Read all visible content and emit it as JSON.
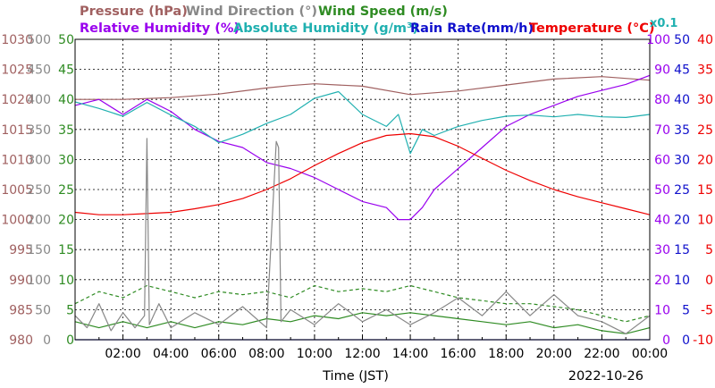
{
  "chart_data": {
    "type": "line",
    "legend": [
      {
        "label": "Pressure (hPa)",
        "color": "#a06060"
      },
      {
        "label": "Wind Direction (°)",
        "color": "#888888"
      },
      {
        "label": "Wind Speed (m/s)",
        "color": "#2e8b22"
      },
      {
        "label": "Relative Humidity (%)",
        "color": "#9900ee"
      },
      {
        "label": "Absolute Humidity (g/m³)",
        "color": "#20b0b0"
      },
      {
        "label": "Rain Rate(mm/h)",
        "color": "#1010cc"
      },
      {
        "label": "Temperature (°C)",
        "color": "#ee0000"
      },
      {
        "label": "x0.1",
        "color": "#20b0b0"
      }
    ],
    "xlabel": "Time (JST)",
    "date": "2022-10-26",
    "x_ticks": [
      "02:00",
      "04:00",
      "06:00",
      "08:00",
      "10:00",
      "12:00",
      "14:00",
      "16:00",
      "18:00",
      "20:00",
      "22:00",
      "00:00"
    ],
    "x_range_hours": [
      0,
      24
    ],
    "grid": true,
    "axes": [
      {
        "name": "Pressure",
        "unit": "hPa",
        "side": "left",
        "color": "#a06060",
        "range": [
          980,
          1030
        ],
        "ticks": [
          "1030",
          "1025",
          "1020",
          "1015",
          "1010",
          "1005",
          "1000",
          "995",
          "990",
          "985",
          "980"
        ]
      },
      {
        "name": "Wind Direction",
        "unit": "°",
        "side": "left",
        "color": "#888888",
        "range": [
          0,
          500
        ],
        "ticks": [
          "500",
          "450",
          "400",
          "350",
          "300",
          "250",
          "200",
          "150",
          "100",
          "50",
          "0"
        ]
      },
      {
        "name": "Wind Speed",
        "unit": "m/s",
        "side": "left",
        "color": "#2e8b22",
        "range": [
          0,
          50
        ],
        "ticks": [
          "50",
          "45",
          "40",
          "35",
          "30",
          "25",
          "20",
          "15",
          "10",
          "5",
          "0"
        ]
      },
      {
        "name": "Relative Humidity",
        "unit": "%",
        "side": "right",
        "color": "#9900ee",
        "range": [
          0,
          100
        ],
        "ticks": [
          "100",
          "90",
          "80",
          "70",
          "60",
          "50",
          "40",
          "30",
          "20",
          "10",
          "0"
        ]
      },
      {
        "name": "Rain Rate",
        "unit": "mm/h",
        "side": "right",
        "color": "#1010cc",
        "range": [
          0,
          50
        ],
        "ticks": [
          "50",
          "45",
          "40",
          "35",
          "30",
          "25",
          "20",
          "15",
          "10",
          "5",
          "0"
        ]
      },
      {
        "name": "Temperature",
        "unit": "°C",
        "side": "right",
        "color": "#ee0000",
        "range": [
          -10,
          40
        ],
        "ticks": [
          "40",
          "35",
          "30",
          "25",
          "20",
          "15",
          "10",
          "5",
          "0",
          "-5",
          "-10"
        ]
      }
    ],
    "series": [
      {
        "name": "Pressure (hPa)",
        "color": "#a06060",
        "axis": "Pressure",
        "x": [
          0,
          2,
          4,
          6,
          8,
          9,
          10,
          12,
          14,
          16,
          18,
          20,
          22,
          24
        ],
        "y": [
          1020,
          1020,
          1020.3,
          1020.9,
          1021.9,
          1022.3,
          1022.6,
          1022.2,
          1020.8,
          1021.4,
          1022.4,
          1023.4,
          1023.8,
          1023.2
        ]
      },
      {
        "name": "Relative Humidity (%)",
        "color": "#9900ee",
        "axis": "Relative Humidity",
        "x": [
          0,
          1,
          2,
          3,
          4,
          5,
          6,
          7,
          8,
          9,
          10,
          11,
          12,
          13,
          13.5,
          14,
          14.5,
          15,
          16,
          17,
          18,
          19,
          20,
          21,
          22,
          23,
          24
        ],
        "y": [
          78,
          80,
          75,
          80,
          76,
          70,
          66,
          64,
          59,
          57,
          54,
          50,
          46,
          44,
          40,
          40,
          44,
          50,
          57,
          64,
          71,
          75,
          78,
          81,
          83,
          85,
          88
        ]
      },
      {
        "name": "Absolute Humidity (g/m³)",
        "color": "#20b0b0",
        "axis": "Wind Speed",
        "scale": "x0.1",
        "x": [
          0,
          1,
          2,
          3,
          4,
          5,
          6,
          7,
          8,
          9,
          10,
          11,
          12,
          13,
          13.5,
          14,
          14.5,
          15,
          16,
          17,
          18,
          19,
          20,
          21,
          22,
          23,
          24
        ],
        "y": [
          39.6,
          38.5,
          37.2,
          39.5,
          37.4,
          35.5,
          32.8,
          34.2,
          36,
          37.5,
          40.2,
          41.3,
          37.5,
          35.5,
          37.5,
          31,
          35,
          34,
          35.5,
          36.5,
          37.2,
          37.4,
          37.1,
          37.5,
          37.1,
          37,
          37.5
        ]
      },
      {
        "name": "Temperature (°C)",
        "color": "#ee0000",
        "axis": "Temperature",
        "x": [
          0,
          1,
          2,
          3,
          4,
          5,
          6,
          7,
          8,
          9,
          10,
          11,
          12,
          13,
          14,
          15,
          16,
          17,
          18,
          19,
          20,
          21,
          22,
          23,
          24
        ],
        "y": [
          11.2,
          10.8,
          10.8,
          11,
          11.2,
          11.8,
          12.5,
          13.5,
          15,
          16.8,
          19,
          21,
          22.8,
          24,
          24.3,
          23.8,
          22.2,
          20.2,
          18.2,
          16.5,
          15,
          13.8,
          12.8,
          11.8,
          10.8
        ]
      },
      {
        "name": "Wind Speed (m/s)",
        "color": "#2e8b22",
        "axis": "Wind Speed",
        "x": [
          0,
          1,
          2,
          3,
          4,
          5,
          6,
          7,
          8,
          9,
          10,
          11,
          12,
          13,
          14,
          15,
          16,
          17,
          18,
          19,
          20,
          21,
          22,
          23,
          24
        ],
        "y": [
          3,
          2,
          3,
          2,
          3,
          2,
          3,
          2.5,
          3.5,
          3,
          4,
          3.5,
          4.5,
          4,
          4.5,
          4,
          3.5,
          3,
          2.5,
          3,
          2,
          2.5,
          1.5,
          1,
          2
        ]
      },
      {
        "name": "Wind Speed gust (m/s)",
        "color": "#2e8b22",
        "axis": "Wind Speed",
        "style": "dashed",
        "x": [
          0,
          1,
          2,
          3,
          4,
          5,
          6,
          7,
          8,
          9,
          10,
          11,
          12,
          13,
          14,
          15,
          16,
          17,
          18,
          19,
          20,
          21,
          22,
          23,
          24
        ],
        "y": [
          6,
          8,
          7,
          9,
          8,
          7,
          8,
          7.5,
          8,
          7,
          9,
          8,
          8.5,
          8,
          9,
          8,
          7,
          6.5,
          6,
          6,
          5.5,
          5,
          4,
          3,
          4
        ]
      },
      {
        "name": "Wind Direction (°)",
        "color": "#888888",
        "axis": "Wind Direction",
        "x": [
          0,
          0.5,
          1,
          1.5,
          2,
          2.5,
          2.9,
          3.0,
          3.1,
          3.5,
          4,
          5,
          6,
          7,
          8,
          8.4,
          8.5,
          8.6,
          9,
          10,
          11,
          12,
          13,
          14,
          15,
          16,
          17,
          18,
          19,
          20,
          21,
          22,
          23,
          24
        ],
        "y": [
          40,
          20,
          60,
          15,
          45,
          20,
          40,
          335,
          25,
          60,
          20,
          45,
          25,
          55,
          20,
          330,
          320,
          30,
          50,
          25,
          60,
          30,
          50,
          25,
          45,
          70,
          40,
          80,
          40,
          75,
          40,
          30,
          10,
          40
        ]
      },
      {
        "name": "Rain Rate (mm/h)",
        "color": "#1010cc",
        "axis": "Rain Rate",
        "x": [
          0,
          24
        ],
        "y": [
          0,
          0
        ]
      }
    ]
  }
}
